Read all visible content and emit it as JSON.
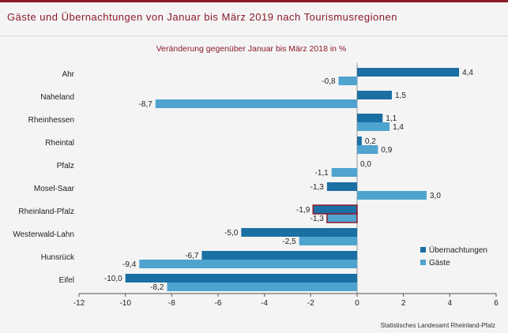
{
  "header": {
    "title": "Gäste und Übernachtungen von Januar bis März 2019 nach Tourismusregionen"
  },
  "source": "Statistisches Landesamt Rheinland-Pfalz",
  "colors": {
    "uebernachtungen": "#1a6fa3",
    "gaeste": "#4fa3cf",
    "highlight_border": "#8b1a2b",
    "title": "#8b1a2b"
  },
  "chart_data": {
    "type": "bar",
    "orientation": "horizontal",
    "subtitle": "Veränderung gegenüber Januar bis März 2018 in %",
    "categories": [
      "Ahr",
      "Naheland",
      "Rheinhessen",
      "Rheintal",
      "Pfalz",
      "Mosel-Saar",
      "Rheinland-Pfalz",
      "Westerwald-Lahn",
      "Hunsrück",
      "Eifel"
    ],
    "series": [
      {
        "name": "Übernachtungen",
        "values": [
          4.4,
          1.5,
          1.1,
          0.2,
          0.0,
          -1.3,
          -1.9,
          -5.0,
          -6.7,
          -10.0
        ],
        "labels": [
          "4,4",
          "1,5",
          "1,1",
          "0,2",
          "0,0",
          "-1,3",
          "-1,9",
          "-5,0",
          "-6,7",
          "-10,0"
        ]
      },
      {
        "name": "Gäste",
        "values": [
          -0.8,
          -8.7,
          1.4,
          0.9,
          -1.1,
          3.0,
          -1.3,
          -2.5,
          -9.4,
          -8.2
        ],
        "labels": [
          "-0,8",
          "-8,7",
          "1,4",
          "0,9",
          "-1,1",
          "3,0",
          "-1,3",
          "-2,5",
          "-9,4",
          "-8,2"
        ]
      }
    ],
    "highlight_category": "Rheinland-Pfalz",
    "xlim": [
      -12,
      6
    ],
    "xticks": [
      -12,
      -10,
      -8,
      -6,
      -4,
      -2,
      0,
      2,
      4,
      6
    ],
    "legend_position": "bottom-right",
    "grid": false
  }
}
